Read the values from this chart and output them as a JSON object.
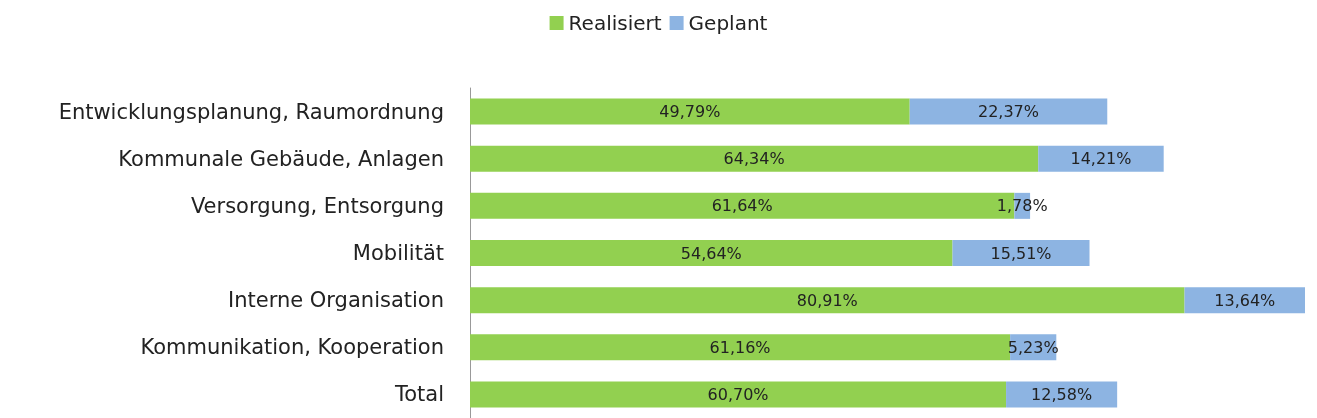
{
  "chart_data": {
    "type": "bar",
    "orientation": "horizontal",
    "stacked": true,
    "legend": "top",
    "grid": false,
    "categories": [
      "Entwicklungsplanung, Raumordnung",
      "Kommunale Gebäude, Anlagen",
      "Versorgung, Entsorgung",
      "Mobilität",
      "Interne Organisation",
      "Kommunikation, Kooperation",
      "Total"
    ],
    "series": [
      {
        "name": "Realisiert",
        "color": "#92d050",
        "values": [
          49.79,
          64.34,
          61.64,
          54.64,
          80.91,
          61.16,
          60.7
        ],
        "value_labels": [
          "49,79%",
          "64,34%",
          "61,64%",
          "54,64%",
          "80,91%",
          "61,16%",
          "60,70%"
        ]
      },
      {
        "name": "Geplant",
        "color": "#8db4e2",
        "values": [
          22.37,
          14.21,
          1.78,
          15.51,
          13.64,
          5.23,
          12.58
        ],
        "value_labels": [
          "22,37%",
          "14,21%",
          "1,78%",
          "15,51%",
          "13,64%",
          "5,23%",
          "12,58%"
        ]
      }
    ]
  }
}
